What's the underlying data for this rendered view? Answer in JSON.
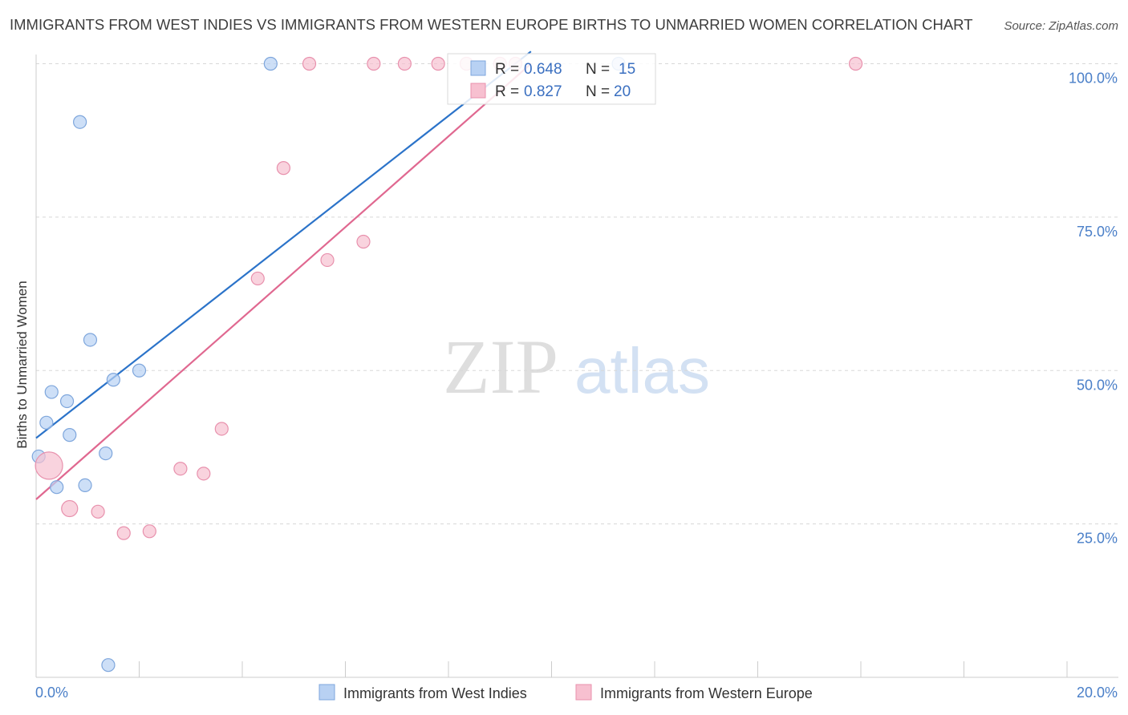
{
  "title": "IMMIGRANTS FROM WEST INDIES VS IMMIGRANTS FROM WESTERN EUROPE BIRTHS TO UNMARRIED WOMEN CORRELATION CHART",
  "source": "Source: ZipAtlas.com",
  "watermark": {
    "zip": "ZIP",
    "atlas": "atlas"
  },
  "colors": {
    "blue_fill": "#b8d1f3",
    "blue_stroke": "#7ea6dc",
    "blue_line": "#2b73c9",
    "pink_fill": "#f7c0d0",
    "pink_stroke": "#e891ad",
    "pink_line": "#e06890",
    "grid": "#d8d8d8",
    "tick_label": "#4a7fc8"
  },
  "stats": {
    "r_label": "R =",
    "n_label": "N =",
    "series": [
      {
        "r": "0.648",
        "n": "15"
      },
      {
        "r": "0.827",
        "n": "20"
      }
    ]
  },
  "chart_data": {
    "type": "scatter",
    "title": "IMMIGRANTS FROM WEST INDIES VS IMMIGRANTS FROM WESTERN EUROPE BIRTHS TO UNMARRIED WOMEN CORRELATION CHART",
    "xlabel": "",
    "ylabel": "Births to Unmarried Women",
    "xlim": [
      0,
      20
    ],
    "ylim": [
      0,
      104
    ],
    "x_tick_labels": [
      "0.0%",
      "20.0%"
    ],
    "y_ticks": [
      25,
      50,
      75,
      100
    ],
    "y_tick_labels": [
      "25.0%",
      "50.0%",
      "75.0%",
      "100.0%"
    ],
    "legend_position": "bottom",
    "series": [
      {
        "name": "Immigrants from West Indies",
        "color": "#7ea6dc",
        "points": [
          {
            "x": 0.05,
            "y": 36.0
          },
          {
            "x": 0.2,
            "y": 41.5
          },
          {
            "x": 0.3,
            "y": 46.5
          },
          {
            "x": 0.4,
            "y": 31.0
          },
          {
            "x": 0.6,
            "y": 45.0
          },
          {
            "x": 0.65,
            "y": 39.5
          },
          {
            "x": 0.85,
            "y": 90.5
          },
          {
            "x": 0.95,
            "y": 31.3
          },
          {
            "x": 1.05,
            "y": 55.0
          },
          {
            "x": 1.35,
            "y": 36.5
          },
          {
            "x": 1.4,
            "y": 2.0
          },
          {
            "x": 1.5,
            "y": 48.5
          },
          {
            "x": 2.0,
            "y": 50.0
          },
          {
            "x": 4.55,
            "y": 100.0
          },
          {
            "x": 11.3,
            "y": 100.0
          }
        ],
        "trend": {
          "x": [
            0,
            9.6
          ],
          "y": [
            39.0,
            102.0
          ]
        }
      },
      {
        "name": "Immigrants from Western Europe",
        "color": "#e891ad",
        "points": [
          {
            "x": 0.25,
            "y": 34.5
          },
          {
            "x": 0.65,
            "y": 27.5
          },
          {
            "x": 1.2,
            "y": 27.0
          },
          {
            "x": 1.7,
            "y": 23.5
          },
          {
            "x": 2.2,
            "y": 23.8
          },
          {
            "x": 2.8,
            "y": 34.0
          },
          {
            "x": 3.25,
            "y": 33.2
          },
          {
            "x": 3.6,
            "y": 40.5
          },
          {
            "x": 4.3,
            "y": 65.0
          },
          {
            "x": 4.8,
            "y": 83.0
          },
          {
            "x": 5.3,
            "y": 100.0
          },
          {
            "x": 5.65,
            "y": 68.0
          },
          {
            "x": 6.35,
            "y": 71.0
          },
          {
            "x": 6.55,
            "y": 100.0
          },
          {
            "x": 7.15,
            "y": 100.0
          },
          {
            "x": 7.8,
            "y": 100.0
          },
          {
            "x": 8.35,
            "y": 100.0
          },
          {
            "x": 9.0,
            "y": 100.0
          },
          {
            "x": 9.3,
            "y": 100.0
          },
          {
            "x": 15.9,
            "y": 100.0
          }
        ],
        "trend": {
          "x": [
            0,
            9.6
          ],
          "y": [
            29.0,
            100.0
          ]
        }
      }
    ]
  }
}
